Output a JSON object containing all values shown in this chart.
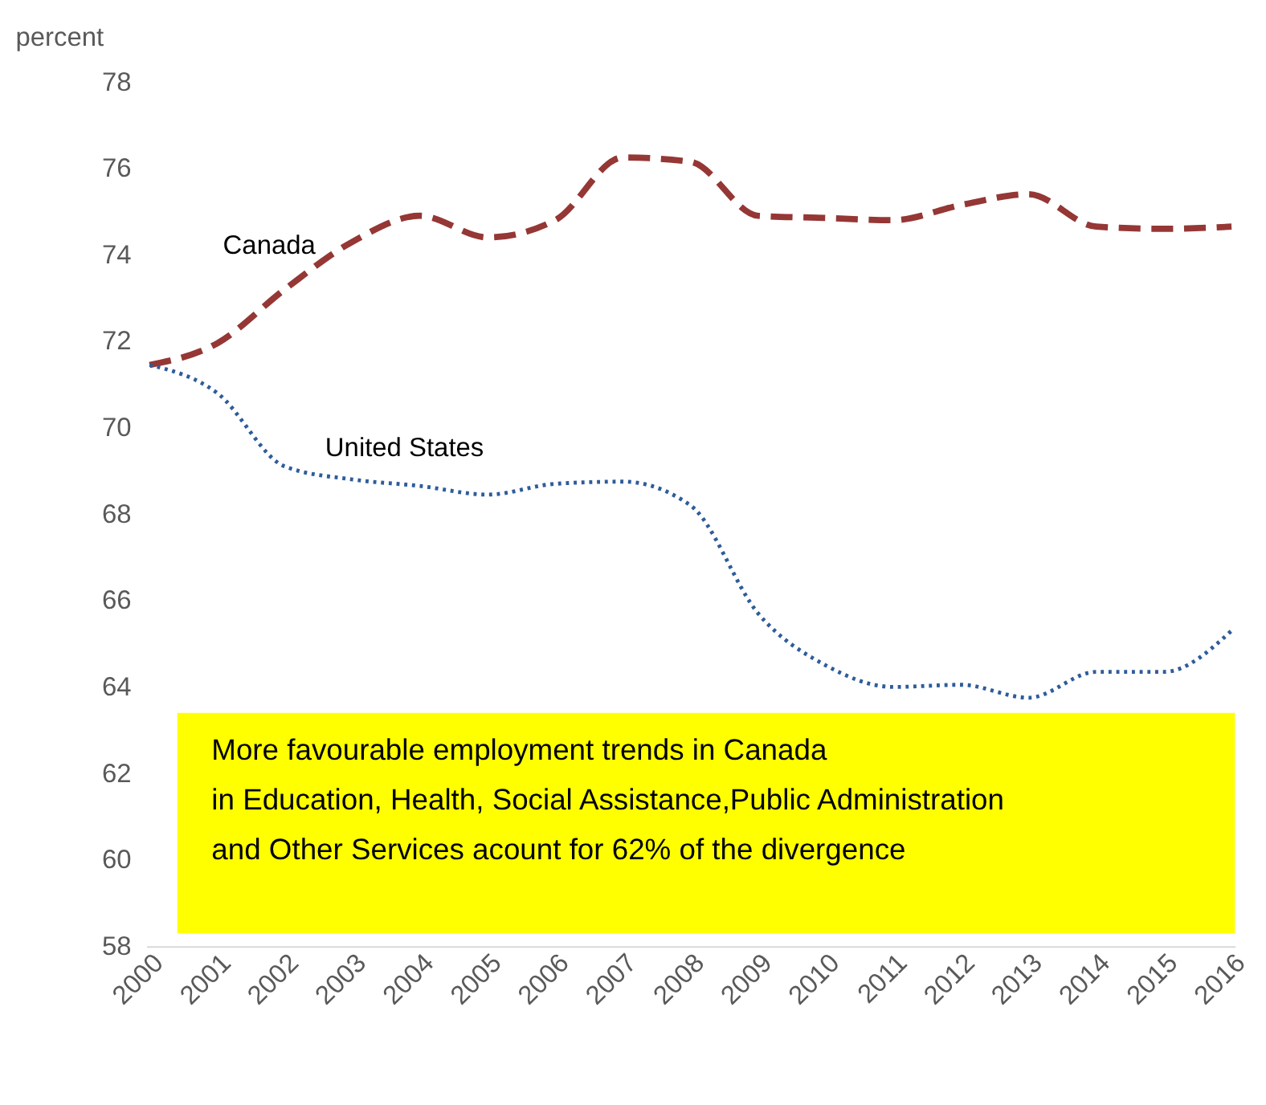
{
  "chart_data": {
    "type": "line",
    "ylabel": "percent",
    "categories": [
      "2000",
      "2001",
      "2002",
      "2003",
      "2004",
      "2005",
      "2006",
      "2007",
      "2008",
      "2009",
      "2010",
      "2011",
      "2012",
      "2013",
      "2014",
      "2015",
      "2016"
    ],
    "series": [
      {
        "name": "Canada",
        "color": "#953735",
        "line_style": "dashed",
        "values": [
          71.45,
          71.95,
          73.2,
          74.3,
          74.9,
          74.4,
          74.8,
          76.25,
          76.15,
          74.9,
          74.85,
          74.8,
          75.15,
          75.4,
          74.65,
          74.6,
          74.65
        ]
      },
      {
        "name": "United States",
        "color": "#2e5c9a",
        "line_style": "dotted",
        "values": [
          71.45,
          70.8,
          69.1,
          68.8,
          68.65,
          68.45,
          68.7,
          68.75,
          68.2,
          65.7,
          64.5,
          64.0,
          64.05,
          63.75,
          64.35,
          64.35,
          65.3
        ]
      }
    ],
    "ylim": [
      58,
      78
    ],
    "yticks": [
      58,
      60,
      62,
      64,
      66,
      68,
      70,
      72,
      74,
      76,
      78
    ],
    "grid": false,
    "marker": "none",
    "bands": [
      {
        "axis": "y",
        "from": 58.3,
        "to": 63.4,
        "color": "#ffff00"
      }
    ],
    "annotations": [
      "More favourable employment trends in Canada\nin Education, Health, Social Assistance,Public Administration\nand Other Services acount for 62% of the divergence"
    ]
  }
}
